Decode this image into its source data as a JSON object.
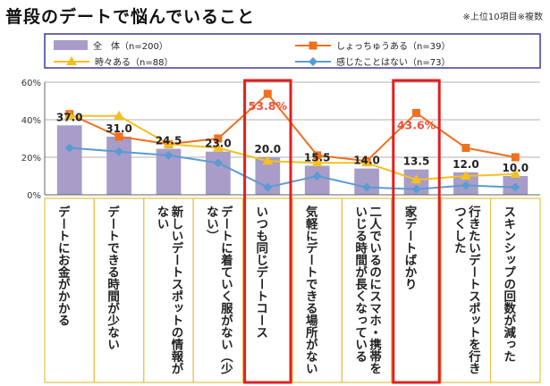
{
  "title": "普段のデートで悩んでいること",
  "note": "※上位10項目※複数",
  "chart_data": {
    "type": "bar+line",
    "ylim": [
      0,
      60
    ],
    "yticks": [
      "0%",
      "20%",
      "40%",
      "60%"
    ],
    "ytick_values": [
      0,
      20,
      40,
      60
    ],
    "categories": [
      "デートにお金がかかる",
      "デートできる時間が少ない",
      "新しいデートスポットの情報がない",
      "デートに着ていく服がない（少ない）",
      "いつも同じデートコース",
      "気軽にデートできる場所がない",
      "二人でいるのにスマホ・携帯をいじる時間が長くなっている",
      "家デートばかり",
      "行きたいデートスポットを行きつくした",
      "スキンシップの回数が減った"
    ],
    "bar_series": {
      "name": "全　体（n=200）",
      "values": [
        37.0,
        31.0,
        24.5,
        23.0,
        20.0,
        15.5,
        14.0,
        13.5,
        12.0,
        10.0
      ],
      "labels": [
        "37.0",
        "31.0",
        "24.5",
        "23.0",
        "20.0",
        "15.5",
        "14.0",
        "13.5",
        "12.0",
        "10.0"
      ]
    },
    "line_series": [
      {
        "name": "しょっちゅうある（n=39）",
        "color": "#f07020",
        "marker": "square",
        "values": [
          43,
          31,
          27,
          30,
          53.8,
          21,
          18,
          43.6,
          25,
          20
        ]
      },
      {
        "name": "時々ある（n=88）",
        "color": "#f5c020",
        "marker": "triangle",
        "values": [
          42,
          42,
          27,
          25,
          18,
          17,
          17,
          8,
          10,
          11
        ]
      },
      {
        "name": "感じたことはない（n=73）",
        "color": "#5b9bd5",
        "marker": "diamond",
        "values": [
          25,
          23,
          21,
          17,
          4,
          10,
          4,
          3,
          5,
          4
        ]
      }
    ],
    "callouts": [
      {
        "category_index": 4,
        "text": "53.8%"
      },
      {
        "category_index": 7,
        "text": "43.6%"
      }
    ],
    "highlighted_categories": [
      4,
      7
    ],
    "colors": {
      "bar": "#a89cc8",
      "highlight": "#e02020",
      "label_box_border": "#e8c040"
    }
  }
}
